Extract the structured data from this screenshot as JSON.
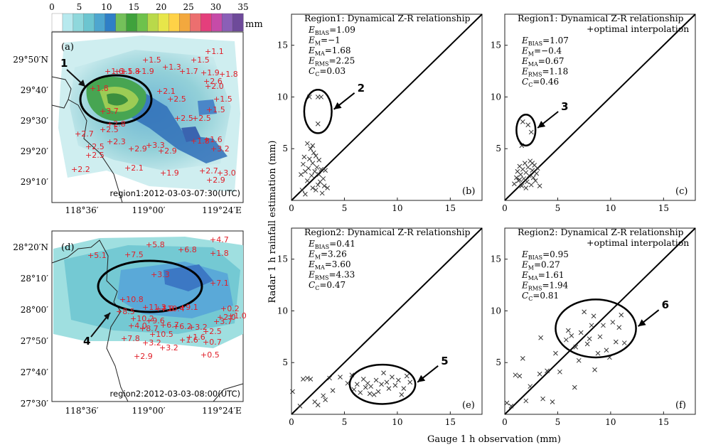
{
  "colorbar": {
    "ticks": [
      "0",
      "5",
      "10",
      "15",
      "20",
      "25",
      "30",
      "35"
    ],
    "unit": "mm",
    "colors": [
      "#ffffff",
      "#b7e9ee",
      "#8fd8dc",
      "#6cc5d0",
      "#4ea6cf",
      "#2f7fc7",
      "#74c05a",
      "#3fa23c",
      "#6ec24c",
      "#b9d94a",
      "#e7e64a",
      "#ffd247",
      "#f3a83e",
      "#ec6f6f",
      "#e43f7c",
      "#c64ba8",
      "#8b5fb7",
      "#6e4a9a"
    ]
  },
  "maps": {
    "top": {
      "label": "(a)",
      "timestamp": "region1:2012-03-03-07:30(UTC)",
      "lat_labels": [
        "29°50′N",
        "29°40′",
        "29°30′",
        "29°20′",
        "29°10′"
      ],
      "lon_labels": [
        "118°36′",
        "119°00′",
        "119°24′E"
      ],
      "callout": "1",
      "station_values": [
        "1.5",
        "1.5",
        "1.1",
        "1.5",
        "1.3",
        "1.7",
        "1.6",
        "1.8",
        "1.9",
        "1.9",
        "1.8",
        "2.0",
        "2.6",
        "1.5",
        "1.8",
        "2.1",
        "2.5",
        "2.5",
        "3.7",
        "2.5",
        "1.5",
        "2.7",
        "2.5",
        "2.8",
        "2.5",
        "2.3",
        "2.9",
        "3.3",
        "2.9",
        "1.8",
        "1.6",
        "3.2",
        "2.5",
        "2.1",
        "2.2",
        "1.9",
        "2.7",
        "3.0",
        "2.9"
      ]
    },
    "bottom": {
      "label": "(d)",
      "timestamp": "region2:2012-03-03-08:00(UTC)",
      "lat_labels": [
        "28°20′N",
        "28°10′",
        "28°00′",
        "27°50′",
        "27°40′",
        "27°30′"
      ],
      "lon_labels": [
        "118°36′",
        "119°00′",
        "119°24′E"
      ],
      "callout": "4",
      "station_values": [
        "5.1",
        "7.5",
        "5.8",
        "6.8",
        "4.7",
        "1.8",
        "3.3",
        "7.1",
        "10.8",
        "11.3",
        "10.4",
        "9.1",
        "0.2",
        "8.5",
        "10.2",
        "9.6",
        "7.8",
        "1.0",
        "4.0",
        "8.7",
        "6.7",
        "6.2",
        "3.7",
        "10.5",
        "3.2",
        "2.5",
        "2.0",
        "7.8",
        "3.2",
        "3.2",
        "1.6",
        "1.6",
        "0.7",
        "2.9",
        "0.5"
      ]
    }
  },
  "shared_axes": {
    "ylabel": "Radar 1 h rainfall estimation (mm)",
    "xlabel": "Gauge 1 h observation (mm)"
  },
  "chart_data": [
    {
      "type": "scatter",
      "panel": "b",
      "title": "Region1: Dynamical Z-R relationship",
      "stats": [
        {
          "name": "BIAS",
          "value": "1.09"
        },
        {
          "name": "M",
          "value": "−1"
        },
        {
          "name": "MA",
          "value": "1.68"
        },
        {
          "name": "RMS",
          "value": "2.25"
        },
        {
          "name": "C",
          "value": "0.03"
        }
      ],
      "callout": "2",
      "xlim": [
        0,
        18
      ],
      "ylim": [
        0,
        18
      ],
      "xticks": [
        0,
        5,
        10,
        15
      ],
      "yticks": [
        5,
        10,
        15
      ],
      "ellipse": {
        "cx": 2.5,
        "cy": 8.6,
        "rx": 1.3,
        "ry": 2.1
      },
      "points": [
        [
          1.7,
          10
        ],
        [
          2.5,
          10
        ],
        [
          2.8,
          10
        ],
        [
          2.5,
          7.4
        ],
        [
          0.9,
          2.5
        ],
        [
          1.1,
          3.5
        ],
        [
          1.3,
          2.8
        ],
        [
          1.2,
          4.2
        ],
        [
          1.5,
          1.9
        ],
        [
          1.6,
          3.1
        ],
        [
          1.7,
          4.0
        ],
        [
          1.8,
          5.0
        ],
        [
          1.9,
          2.4
        ],
        [
          2.0,
          1.2
        ],
        [
          2.0,
          3.6
        ],
        [
          2.1,
          4.6
        ],
        [
          2.2,
          2.8
        ],
        [
          2.3,
          1.0
        ],
        [
          2.3,
          4.3
        ],
        [
          2.4,
          3.2
        ],
        [
          2.5,
          1.5
        ],
        [
          2.6,
          2.5
        ],
        [
          2.6,
          3.9
        ],
        [
          2.7,
          1.8
        ],
        [
          2.8,
          3.0
        ],
        [
          2.9,
          0.7
        ],
        [
          3.0,
          2.1
        ],
        [
          3.1,
          1.4
        ],
        [
          3.2,
          2.9
        ],
        [
          3.4,
          1.2
        ],
        [
          1.5,
          5.5
        ],
        [
          2.0,
          5.3
        ],
        [
          1.0,
          1.0
        ],
        [
          1.3,
          0.6
        ]
      ]
    },
    {
      "type": "scatter",
      "panel": "c",
      "title": "Region1: Dynamical Z-R relationship +optimal interpolation",
      "stats": [
        {
          "name": "BIAS",
          "value": "1.07"
        },
        {
          "name": "M",
          "value": "−0.4"
        },
        {
          "name": "MA",
          "value": "0.67"
        },
        {
          "name": "RMS",
          "value": "1.18"
        },
        {
          "name": "C",
          "value": "0.46"
        }
      ],
      "callout": "3",
      "xlim": [
        0,
        18
      ],
      "ylim": [
        0,
        18
      ],
      "xticks": [
        0,
        5,
        10,
        15
      ],
      "yticks": [
        5,
        10,
        15
      ],
      "ellipse": {
        "cx": 2.0,
        "cy": 6.8,
        "rx": 0.9,
        "ry": 1.5
      },
      "points": [
        [
          1.7,
          7.6
        ],
        [
          2.2,
          7.3
        ],
        [
          2.5,
          6.6
        ],
        [
          1.6,
          5.3
        ],
        [
          0.9,
          1.6
        ],
        [
          1.1,
          2.2
        ],
        [
          1.2,
          2.8
        ],
        [
          1.3,
          1.9
        ],
        [
          1.4,
          3.3
        ],
        [
          1.5,
          2.5
        ],
        [
          1.6,
          1.4
        ],
        [
          1.7,
          3.0
        ],
        [
          1.8,
          2.1
        ],
        [
          1.9,
          3.6
        ],
        [
          2.0,
          2.7
        ],
        [
          2.1,
          1.8
        ],
        [
          2.2,
          3.2
        ],
        [
          2.3,
          2.4
        ],
        [
          2.4,
          3.8
        ],
        [
          2.5,
          1.5
        ],
        [
          2.6,
          2.9
        ],
        [
          2.7,
          2.2
        ],
        [
          2.8,
          3.4
        ],
        [
          2.9,
          1.9
        ],
        [
          3.0,
          2.6
        ],
        [
          3.1,
          3.1
        ],
        [
          3.3,
          1.4
        ],
        [
          1.4,
          2.0
        ],
        [
          2.0,
          1.2
        ],
        [
          2.6,
          3.6
        ]
      ]
    },
    {
      "type": "scatter",
      "panel": "e",
      "title": "Region2: Dynamical Z-R relationship",
      "stats": [
        {
          "name": "BIAS",
          "value": "0.41"
        },
        {
          "name": "M",
          "value": "3.26"
        },
        {
          "name": "MA",
          "value": "3.60"
        },
        {
          "name": "RMS",
          "value": "4.33"
        },
        {
          "name": "C",
          "value": "0.47"
        }
      ],
      "callout": "5",
      "xlim": [
        0,
        18
      ],
      "ylim": [
        0,
        18
      ],
      "xticks": [
        0,
        5,
        10,
        15
      ],
      "yticks": [
        5,
        10,
        15
      ],
      "ellipse": {
        "cx": 8.6,
        "cy": 2.9,
        "rx": 3.1,
        "ry": 1.9
      },
      "points": [
        [
          0.1,
          2.2
        ],
        [
          1.1,
          3.4
        ],
        [
          1.5,
          3.5
        ],
        [
          1.8,
          3.4
        ],
        [
          2.2,
          1.2
        ],
        [
          2.5,
          0.9
        ],
        [
          3.0,
          1.8
        ],
        [
          3.2,
          1.4
        ],
        [
          3.6,
          3.5
        ],
        [
          3.9,
          2.3
        ],
        [
          4.6,
          3.6
        ],
        [
          5.3,
          3.0
        ],
        [
          5.7,
          3.8
        ],
        [
          5.9,
          2.4
        ],
        [
          6.2,
          2.9
        ],
        [
          6.5,
          2.1
        ],
        [
          6.8,
          3.4
        ],
        [
          7.0,
          2.6
        ],
        [
          7.2,
          3.0
        ],
        [
          7.5,
          2.7
        ],
        [
          7.8,
          1.9
        ],
        [
          8.0,
          3.3
        ],
        [
          8.2,
          2.2
        ],
        [
          8.5,
          2.9
        ],
        [
          8.7,
          4.0
        ],
        [
          9.0,
          3.1
        ],
        [
          9.2,
          2.5
        ],
        [
          9.5,
          3.6
        ],
        [
          9.8,
          2.8
        ],
        [
          10.1,
          3.3
        ],
        [
          10.4,
          1.9
        ],
        [
          10.6,
          2.5
        ],
        [
          10.9,
          3.7
        ],
        [
          11.2,
          3.1
        ],
        [
          7.4,
          2.0
        ],
        [
          0.8,
          0.8
        ]
      ]
    },
    {
      "type": "scatter",
      "panel": "f",
      "title": "Region2: Dynamical Z-R relationship +optimal interpolation",
      "stats": [
        {
          "name": "BIAS",
          "value": "0.95"
        },
        {
          "name": "M",
          "value": "0.27"
        },
        {
          "name": "MA",
          "value": "1.61"
        },
        {
          "name": "RMS",
          "value": "1.94"
        },
        {
          "name": "C",
          "value": "0.81"
        }
      ],
      "callout": "6",
      "xlim": [
        0,
        18
      ],
      "ylim": [
        0,
        18
      ],
      "xticks": [
        0,
        5,
        10,
        15
      ],
      "yticks": [
        5,
        10,
        15
      ],
      "ellipse": {
        "cx": 8.6,
        "cy": 8.3,
        "rx": 3.8,
        "ry": 2.8
      },
      "points": [
        [
          0.2,
          1.1
        ],
        [
          0.6,
          0.8
        ],
        [
          1.0,
          3.8
        ],
        [
          1.4,
          3.7
        ],
        [
          1.7,
          5.4
        ],
        [
          2.0,
          1.3
        ],
        [
          2.4,
          2.7
        ],
        [
          3.3,
          3.9
        ],
        [
          3.6,
          1.5
        ],
        [
          4.0,
          4.2
        ],
        [
          4.5,
          1.2
        ],
        [
          5.2,
          4.1
        ],
        [
          6.6,
          2.6
        ],
        [
          3.4,
          7.4
        ],
        [
          5.8,
          7.2
        ],
        [
          6.0,
          8.1
        ],
        [
          6.3,
          7.6
        ],
        [
          6.7,
          6.5
        ],
        [
          7.0,
          5.2
        ],
        [
          7.2,
          7.9
        ],
        [
          7.5,
          9.9
        ],
        [
          7.8,
          6.8
        ],
        [
          8.0,
          7.3
        ],
        [
          8.2,
          8.6
        ],
        [
          8.4,
          9.5
        ],
        [
          8.5,
          4.3
        ],
        [
          8.8,
          5.9
        ],
        [
          9.0,
          7.5
        ],
        [
          9.3,
          8.6
        ],
        [
          9.6,
          6.2
        ],
        [
          9.9,
          5.5
        ],
        [
          10.2,
          8.9
        ],
        [
          10.5,
          7.0
        ],
        [
          10.8,
          8.4
        ],
        [
          11.0,
          9.6
        ],
        [
          11.3,
          6.9
        ],
        [
          4.8,
          5.9
        ]
      ]
    }
  ]
}
